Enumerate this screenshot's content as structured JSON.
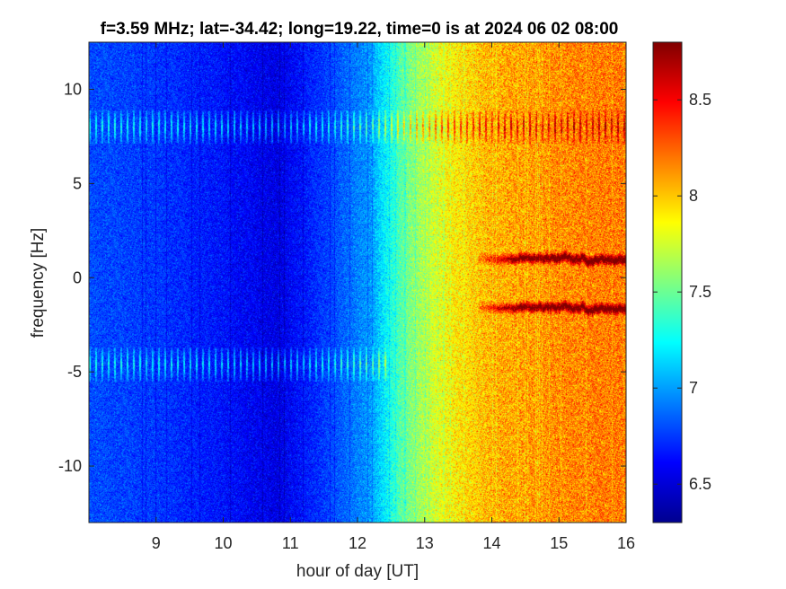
{
  "chart_data": {
    "type": "heatmap",
    "title": "f=3.59 MHz;  lat=-34.42; long=19.22, time=0 is at 2024 06 02 08:00",
    "xlabel": "hour of day [UT]",
    "ylabel": "frequency [Hz]",
    "x_ticks": [
      9,
      10,
      11,
      12,
      13,
      14,
      15,
      16
    ],
    "y_ticks": [
      10,
      5,
      0,
      -5,
      -10
    ],
    "xlim": [
      8,
      16
    ],
    "ylim": [
      -13,
      12.5
    ],
    "colorbar": {
      "colormap": "jet",
      "range": [
        6.3,
        8.8
      ],
      "ticks": [
        8.5,
        8,
        7.5,
        7,
        6.5
      ]
    },
    "background_trend": [
      {
        "hour": 8.0,
        "value": 6.8
      },
      {
        "hour": 9.0,
        "value": 6.75
      },
      {
        "hour": 10.0,
        "value": 6.65
      },
      {
        "hour": 10.8,
        "value": 6.55
      },
      {
        "hour": 11.5,
        "value": 6.75
      },
      {
        "hour": 12.2,
        "value": 7.0
      },
      {
        "hour": 12.7,
        "value": 7.5
      },
      {
        "hour": 13.3,
        "value": 7.85
      },
      {
        "hour": 14.0,
        "value": 8.05
      },
      {
        "hour": 15.0,
        "value": 8.15
      },
      {
        "hour": 16.0,
        "value": 8.2
      }
    ],
    "features": [
      {
        "freq": 8.0,
        "hours": [
          8.0,
          16.0
        ],
        "type": "pulsed-band"
      },
      {
        "freq": -4.6,
        "hours": [
          8.0,
          12.5
        ],
        "type": "pulsed-band"
      },
      {
        "freq": 1.0,
        "hours": [
          13.8,
          16.0
        ],
        "type": "doppler-trace"
      },
      {
        "freq": -1.6,
        "hours": [
          13.8,
          16.0
        ],
        "type": "doppler-trace"
      }
    ]
  }
}
